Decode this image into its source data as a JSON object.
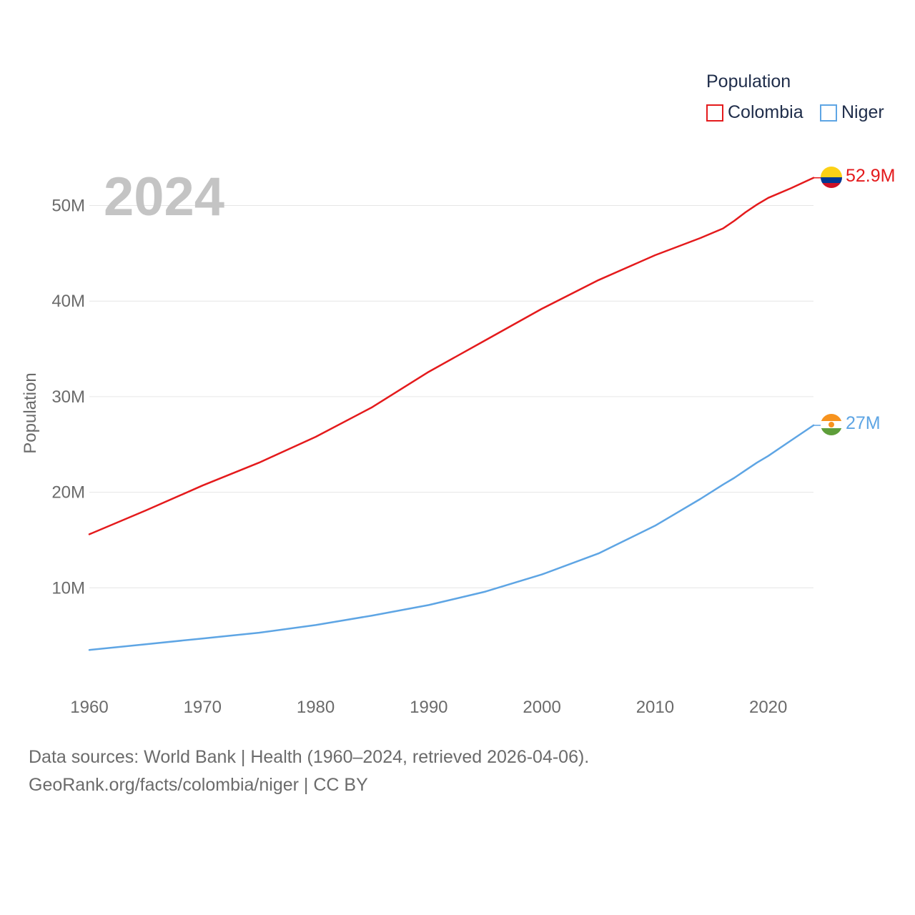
{
  "legend": {
    "title": "Population",
    "items": [
      {
        "label": "Colombia",
        "color": "#e41a1c"
      },
      {
        "label": "Niger",
        "color": "#5ea5e4"
      }
    ]
  },
  "year_label": "2024",
  "footer": {
    "line1": "Data sources: World Bank | Health (1960–2024, retrieved 2026-04-06).",
    "line2": "GeoRank.org/facts/colombia/niger | CC BY"
  },
  "chart_data": {
    "type": "line",
    "title": "",
    "xlabel": "",
    "ylabel": "Population",
    "xlim": [
      1960,
      2024
    ],
    "ylim": [
      0,
      55000000
    ],
    "x_ticks": [
      1960,
      1970,
      1980,
      1990,
      2000,
      2010,
      2020
    ],
    "y_ticks": [
      {
        "value": 10000000,
        "label": "10M"
      },
      {
        "value": 20000000,
        "label": "20M"
      },
      {
        "value": 30000000,
        "label": "30M"
      },
      {
        "value": 40000000,
        "label": "40M"
      },
      {
        "value": 50000000,
        "label": "50M"
      }
    ],
    "grid": true,
    "x": [
      1960,
      1965,
      1970,
      1975,
      1980,
      1985,
      1990,
      1995,
      2000,
      2005,
      2010,
      2012,
      2014,
      2016,
      2017,
      2018,
      2019,
      2020,
      2022,
      2024
    ],
    "series": [
      {
        "name": "Colombia",
        "color": "#e41a1c",
        "end_label": "52.9M",
        "flag": "colombia-flag-icon",
        "values": [
          15600000,
          18100000,
          20700000,
          23100000,
          25800000,
          28900000,
          32600000,
          35900000,
          39200000,
          42200000,
          44800000,
          45700000,
          46600000,
          47600000,
          48400000,
          49300000,
          50100000,
          50800000,
          51800000,
          52900000
        ]
      },
      {
        "name": "Niger",
        "color": "#5ea5e4",
        "end_label": "27M",
        "flag": "niger-flag-icon",
        "values": [
          3500000,
          4100000,
          4700000,
          5300000,
          6100000,
          7100000,
          8200000,
          9600000,
          11400000,
          13600000,
          16500000,
          17900000,
          19300000,
          20800000,
          21500000,
          22300000,
          23100000,
          23800000,
          25400000,
          27000000
        ]
      }
    ]
  }
}
